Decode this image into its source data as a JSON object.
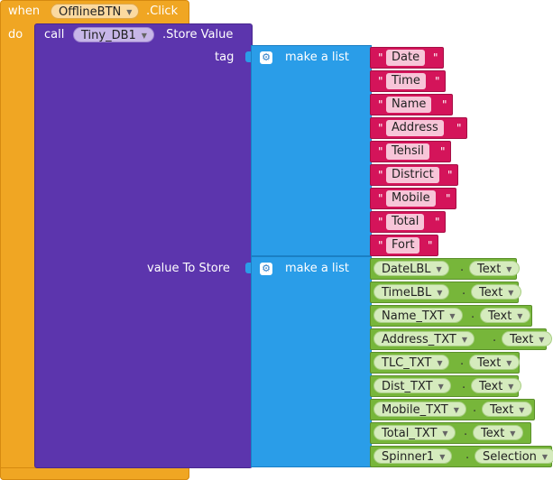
{
  "event": {
    "when": "when",
    "component": "OfflineBTN",
    "event": ".Click",
    "do": "do"
  },
  "call": {
    "call": "call",
    "component": "Tiny_DB1",
    "method": ".Store Value"
  },
  "params": {
    "tag": "tag",
    "value": "value To Store"
  },
  "make_list": "make a list",
  "tag_items": [
    "Date",
    "Time",
    "Name",
    "Address",
    "Tehsil",
    "District",
    "Mobile",
    "Total",
    "Fort"
  ],
  "value_items": [
    {
      "component": "DateLBL",
      "property": "Text"
    },
    {
      "component": "TimeLBL",
      "property": "Text"
    },
    {
      "component": "Name_TXT",
      "property": "Text"
    },
    {
      "component": "Address_TXT",
      "property": "Text"
    },
    {
      "component": "TLC_TXT",
      "property": "Text"
    },
    {
      "component": "Dist_TXT",
      "property": "Text"
    },
    {
      "component": "Mobile_TXT",
      "property": "Text"
    },
    {
      "component": "Total_TXT",
      "property": "Text"
    },
    {
      "component": "Spinner1",
      "property": "Selection"
    }
  ],
  "dropdown_arrow": "▼",
  "quote": "\"",
  "gear_icon": "⚙",
  "dot": "."
}
